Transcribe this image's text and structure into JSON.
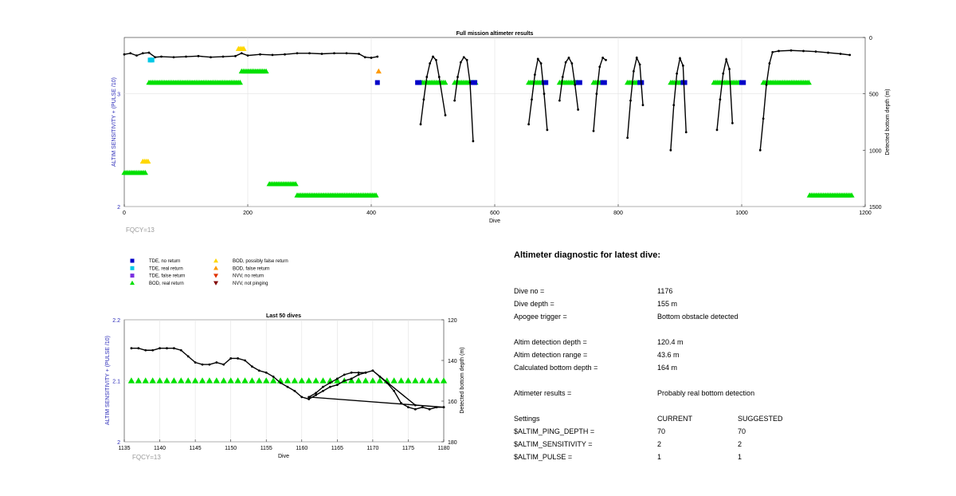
{
  "chart_data": [
    {
      "type": "scatter",
      "title": "Full mission altimeter results",
      "xlabel": "Dive",
      "ylabel": "ALTIM SENSITIVITY + (PULSE /10)",
      "ylabel_right": "Detected bottom depth (m)",
      "xlim": [
        0,
        1200
      ],
      "ylim": [
        2,
        3.5
      ],
      "ylim_right": [
        1500,
        0
      ],
      "xticks": [
        "0",
        "200",
        "400",
        "600",
        "800",
        "1000",
        "1200"
      ],
      "yticks": [
        "2",
        "3"
      ],
      "yticks_right": [
        "0",
        "500",
        "1000",
        "1500"
      ],
      "annotation": "FQCY=13",
      "grid": true,
      "marker_series": [
        {
          "symbol": "BOD, real return",
          "y": 3.1,
          "ranges": [
            [
              40,
              190
            ],
            [
              480,
              520
            ],
            [
              535,
              570
            ],
            [
              655,
              680
            ],
            [
              705,
              735
            ],
            [
              760,
              775
            ],
            [
              815,
              835
            ],
            [
              885,
              905
            ],
            [
              955,
              1000
            ],
            [
              1035,
              1110
            ]
          ]
        },
        {
          "symbol": "BOD, real return",
          "y": 3.2,
          "ranges": [
            [
              190,
              230
            ]
          ]
        },
        {
          "symbol": "BOD, real return",
          "y": 2.3,
          "ranges": [
            [
              0,
              35
            ]
          ]
        },
        {
          "symbol": "BOD, real return",
          "y": 2.2,
          "ranges": [
            [
              235,
              280
            ]
          ]
        },
        {
          "symbol": "BOD, real return",
          "y": 2.1,
          "ranges": [
            [
              280,
              410
            ],
            [
              1110,
              1180
            ]
          ]
        },
        {
          "symbol": "BOD, possibly false return",
          "y": 3.4,
          "ranges": [
            [
              185,
              195
            ]
          ]
        },
        {
          "symbol": "BOD, possibly false return",
          "y": 2.4,
          "ranges": [
            [
              30,
              40
            ]
          ]
        },
        {
          "symbol": "BOD, false return",
          "y": 3.2,
          "ranges": [
            [
              412,
              414
            ]
          ]
        },
        {
          "symbol": "TDE, no return",
          "y": 3.1,
          "ranges": [
            [
              410,
              412
            ],
            [
              475,
              480
            ],
            [
              565,
              570
            ],
            [
              680,
              685
            ],
            [
              735,
              740
            ],
            [
              775,
              780
            ],
            [
              835,
              840
            ],
            [
              905,
              910
            ],
            [
              1000,
              1005
            ]
          ]
        },
        {
          "symbol": "TDE, real return",
          "y": 3.3,
          "ranges": [
            [
              42,
              45
            ]
          ]
        }
      ],
      "series": [
        {
          "name": "Detected bottom depth (m)",
          "axis": "right",
          "x": [
            0,
            10,
            20,
            30,
            40,
            50,
            60,
            80,
            100,
            120,
            140,
            160,
            180,
            190,
            200,
            220,
            240,
            260,
            280,
            300,
            320,
            340,
            360,
            380,
            390,
            400,
            410
          ],
          "y": [
            150,
            140,
            160,
            140,
            135,
            175,
            170,
            175,
            170,
            165,
            175,
            170,
            165,
            140,
            160,
            150,
            155,
            150,
            140,
            140,
            145,
            140,
            140,
            145,
            175,
            180,
            170
          ]
        },
        {
          "name": "Detected bottom depth (m)",
          "axis": "right",
          "x": [
            480,
            485,
            490,
            495,
            500,
            505,
            510,
            520
          ],
          "y": [
            770,
            550,
            350,
            230,
            170,
            200,
            350,
            690
          ]
        },
        {
          "name": "Detected bottom depth (m)",
          "axis": "right",
          "x": [
            535,
            540,
            545,
            550,
            555,
            560,
            565
          ],
          "y": [
            560,
            350,
            220,
            175,
            200,
            400,
            920
          ]
        },
        {
          "name": "Detected bottom depth (m)",
          "axis": "right",
          "x": [
            655,
            660,
            665,
            670,
            675,
            680,
            685
          ],
          "y": [
            770,
            550,
            330,
            190,
            230,
            500,
            820
          ]
        },
        {
          "name": "Detected bottom depth (m)",
          "axis": "right",
          "x": [
            705,
            710,
            715,
            720,
            725,
            730,
            735
          ],
          "y": [
            560,
            350,
            220,
            180,
            230,
            420,
            640
          ]
        },
        {
          "name": "Detected bottom depth (m)",
          "axis": "right",
          "x": [
            760,
            765,
            770,
            775,
            780
          ],
          "y": [
            830,
            500,
            260,
            180,
            200
          ]
        },
        {
          "name": "Detected bottom depth (m)",
          "axis": "right",
          "x": [
            815,
            820,
            825,
            830,
            835,
            840
          ],
          "y": [
            890,
            560,
            300,
            180,
            240,
            600
          ]
        },
        {
          "name": "Detected bottom depth (m)",
          "axis": "right",
          "x": [
            885,
            890,
            895,
            900,
            905,
            910
          ],
          "y": [
            1000,
            600,
            320,
            185,
            250,
            840
          ]
        },
        {
          "name": "Detected bottom depth (m)",
          "axis": "right",
          "x": [
            960,
            965,
            970,
            975,
            980,
            985
          ],
          "y": [
            820,
            550,
            320,
            195,
            280,
            760
          ]
        },
        {
          "name": "Detected bottom depth (m)",
          "axis": "right",
          "x": [
            1030,
            1035,
            1040,
            1045,
            1050,
            1060,
            1080,
            1100,
            1120,
            1140,
            1160,
            1175
          ],
          "y": [
            1000,
            720,
            420,
            230,
            130,
            120,
            115,
            120,
            125,
            135,
            145,
            155
          ]
        }
      ]
    },
    {
      "type": "scatter",
      "title": "Last 50 dives",
      "xlabel": "Dive",
      "ylabel": "ALTIM SENSITIVITY + (PULSE /10)",
      "ylabel_right": "Detected bottom depth (m)",
      "xlim": [
        1135,
        1180
      ],
      "ylim": [
        2,
        2.2
      ],
      "ylim_right": [
        180,
        120
      ],
      "xticks": [
        "1135",
        "1140",
        "1145",
        "1150",
        "1155",
        "1160",
        "1165",
        "1170",
        "1175",
        "1180"
      ],
      "yticks": [
        "2",
        "2.1",
        "2.2"
      ],
      "yticks_right": [
        "120",
        "140",
        "160",
        "180"
      ],
      "annotation": "FQCY=13",
      "grid": true,
      "marker_series": [
        {
          "symbol": "BOD, real return",
          "y": 2.1,
          "x": [
            1136,
            1137,
            1138,
            1139,
            1140,
            1141,
            1142,
            1143,
            1144,
            1145,
            1146,
            1147,
            1148,
            1149,
            1150,
            1151,
            1152,
            1153,
            1154,
            1155,
            1156,
            1157,
            1158,
            1159,
            1160,
            1161,
            1162,
            1163,
            1164,
            1165,
            1166,
            1167,
            1168,
            1169,
            1170,
            1171,
            1172,
            1173,
            1174,
            1175,
            1176,
            1177,
            1178,
            1179,
            1180
          ]
        }
      ],
      "series": [
        {
          "name": "Detected bottom depth (m)",
          "axis": "right",
          "x": [
            1136,
            1137,
            1138,
            1139,
            1140,
            1141,
            1142,
            1143,
            1144,
            1145,
            1146,
            1147,
            1148,
            1149,
            1150,
            1151,
            1152,
            1153,
            1154,
            1155,
            1156,
            1157,
            1158,
            1159,
            1160,
            1161,
            1162,
            1163,
            1164,
            1165,
            1166,
            1167,
            1168,
            1169,
            1170,
            1171,
            1172,
            1173,
            1174,
            1175,
            1176,
            1177,
            1178,
            1179,
            1180,
            1161,
            1162,
            1163,
            1164,
            1165,
            1166,
            1167,
            1168,
            1169,
            1170,
            1176,
            1180
          ],
          "y": [
            134,
            134,
            135,
            135,
            134,
            134,
            134,
            135,
            138,
            141,
            142,
            142,
            141,
            142,
            139,
            139,
            140,
            143,
            145,
            146,
            148,
            151,
            153,
            155,
            158,
            159,
            157,
            155,
            153,
            152,
            150,
            149,
            147,
            146,
            145,
            148,
            151,
            155,
            161,
            163,
            164,
            163,
            164,
            163,
            163,
            158,
            156,
            153,
            151,
            149,
            147,
            146,
            146,
            146,
            145,
            162,
            163
          ]
        }
      ]
    }
  ],
  "legend": {
    "items": [
      {
        "label": "TDE, no return",
        "shape": "square",
        "color": "#0000c8"
      },
      {
        "label": "TDE, real return",
        "shape": "square",
        "color": "#00c8e6"
      },
      {
        "label": "TDE, false return",
        "shape": "square",
        "color": "#7a2fe0"
      },
      {
        "label": "BOD, real return",
        "shape": "triangle-up",
        "color": "#00e000"
      },
      {
        "label": "BOD, possibly false return",
        "shape": "triangle-up",
        "color": "#ffd700"
      },
      {
        "label": "BOD, false return",
        "shape": "triangle-up",
        "color": "#ff9a00"
      },
      {
        "label": "NVV, no return",
        "shape": "triangle-down",
        "color": "#e03000"
      },
      {
        "label": "NVV, not pinging",
        "shape": "triangle-down",
        "color": "#800000"
      }
    ]
  },
  "diagnostic": {
    "title": "Altimeter diagnostic for latest dive:",
    "dive_no_label": "Dive no =",
    "dive_no": "1176",
    "dive_depth_label": "Dive depth =",
    "dive_depth": "155 m",
    "apogee_label": "Apogee trigger =",
    "apogee": "Bottom obstacle detected",
    "altim_detect_depth_label": "Altim detection depth =",
    "altim_detect_depth": "120.4 m",
    "altim_detect_range_label": "Altim detection range =",
    "altim_detect_range": "43.6 m",
    "calc_bottom_label": "Calculated bottom depth =",
    "calc_bottom": "164 m",
    "results_label": "Altimeter results =",
    "results": "Probably real bottom detection",
    "settings_label": "Settings",
    "current_label": "CURRENT",
    "suggested_label": "SUGGESTED",
    "settings": [
      {
        "name": "$ALTIM_PING_DEPTH =",
        "current": "70",
        "suggested": "70"
      },
      {
        "name": "$ALTIM_SENSITIVITY =",
        "current": "2",
        "suggested": "2"
      },
      {
        "name": "$ALTIM_PULSE =",
        "current": "1",
        "suggested": "1"
      }
    ]
  },
  "colors": {
    "bod_real": "#00e000",
    "bod_possibly_false": "#ffd700",
    "bod_false": "#ff9a00",
    "tde_no": "#0000c8",
    "tde_real": "#00c8e6",
    "tde_false": "#7a2fe0",
    "nvv_no": "#e03000",
    "nvv_not": "#800000",
    "left_axis_label": "#2a2ab8",
    "fqcy": "#9a9a9a"
  }
}
